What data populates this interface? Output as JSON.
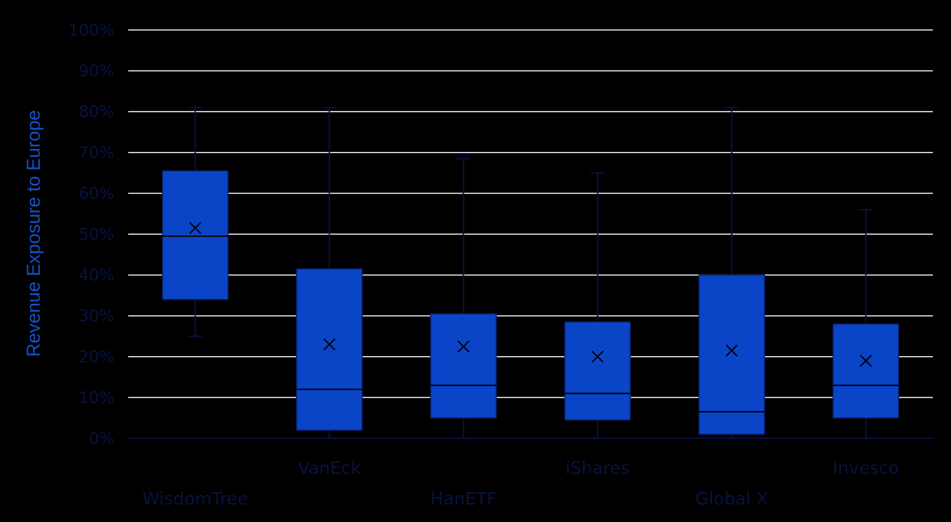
{
  "chart_data": {
    "type": "box",
    "title": "",
    "ylabel": "Revenue Exposure to Europe",
    "xlabel": "",
    "ylim": [
      0,
      100
    ],
    "y_ticks": [
      "0%",
      "10%",
      "20%",
      "30%",
      "40%",
      "50%",
      "60%",
      "70%",
      "80%",
      "90%",
      "100%"
    ],
    "grid": true,
    "legend": "none",
    "categories": [
      "WisdomTree",
      "VanEck",
      "HanETF",
      "iShares",
      "Global X",
      "Invesco"
    ],
    "boxes": [
      {
        "name": "WisdomTree",
        "min": 25,
        "q1": 34,
        "median": 49.5,
        "q3": 65.5,
        "max": 81,
        "mean": 51.5
      },
      {
        "name": "VanEck",
        "min": 0,
        "q1": 2,
        "median": 12,
        "q3": 41.5,
        "max": 81,
        "mean": 23
      },
      {
        "name": "HanETF",
        "min": 0,
        "q1": 5,
        "median": 13,
        "q3": 30.5,
        "max": 68.5,
        "mean": 22.5
      },
      {
        "name": "iShares",
        "min": 0,
        "q1": 4.5,
        "median": 11,
        "q3": 28.5,
        "max": 65,
        "mean": 20
      },
      {
        "name": "Global X",
        "min": 0,
        "q1": 1,
        "median": 6.5,
        "q3": 40,
        "max": 81,
        "mean": 21.5
      },
      {
        "name": "Invesco",
        "min": 0,
        "q1": 5,
        "median": 13,
        "q3": 28,
        "max": 56,
        "mean": 19
      }
    ],
    "colors": {
      "box_fill": "#0a45c8",
      "box_stroke": "#0a1f6e",
      "whisker": "#0a1140",
      "gridline": "#ffffff",
      "axis_text": "#0a1140",
      "title_text": "#1452c8",
      "background": "#000000"
    }
  }
}
